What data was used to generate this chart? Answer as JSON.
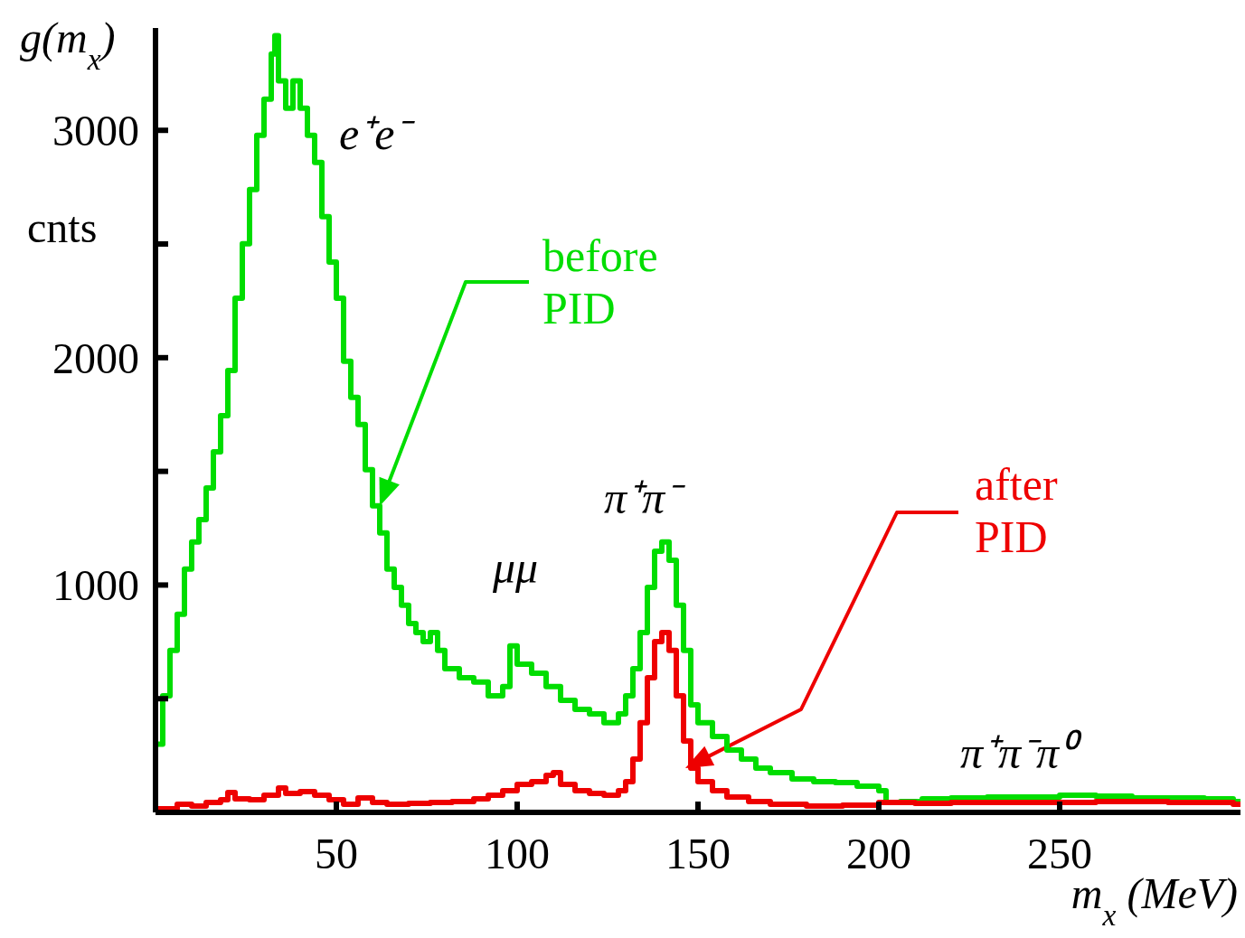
{
  "chart_data": {
    "type": "step",
    "ylabel": "g(m$_{x}$)",
    "xlabel": "m$_{x}$   (MeV)",
    "annotations": [
      "cnts",
      "e⁺e⁻",
      "μμ",
      "π⁺π⁻",
      "π⁺π⁻π⁰"
    ],
    "xlim": [
      0,
      300
    ],
    "xticks": [
      50,
      100,
      150,
      200,
      250
    ],
    "ylim": [
      0,
      3450
    ],
    "yticks": [
      {
        "value": 500,
        "label": null
      },
      1000,
      {
        "value": 1500,
        "label": null
      },
      2000,
      {
        "value": 2500,
        "label": null
      },
      3000
    ],
    "marker": "none",
    "line_style": "solid",
    "series": [
      {
        "name": "before PID",
        "color": "#00dd00",
        "x": [
          0,
          2,
          4,
          6,
          8,
          10,
          12,
          14,
          16,
          18,
          20,
          22,
          24,
          26,
          28,
          30,
          32,
          33,
          34,
          36,
          38,
          40,
          42,
          44,
          46,
          48,
          50,
          52,
          54,
          56,
          58,
          60,
          62,
          64,
          66,
          68,
          70,
          72,
          74,
          76,
          78,
          80,
          84,
          88,
          92,
          96,
          98,
          100,
          104,
          108,
          112,
          116,
          120,
          124,
          128,
          130,
          132,
          134,
          136,
          138,
          140,
          142,
          144,
          146,
          148,
          150,
          154,
          158,
          162,
          166,
          170,
          176,
          182,
          188,
          194,
          200,
          202,
          206,
          212,
          220,
          230,
          240,
          250,
          260,
          270,
          280,
          290,
          298,
          300
        ],
        "values": [
          300,
          513,
          712,
          871,
          1070,
          1189,
          1288,
          1427,
          1586,
          1745,
          1944,
          2262,
          2501,
          2740,
          2978,
          3137,
          3336,
          3416,
          3217,
          3097,
          3217,
          3097,
          2978,
          2859,
          2620,
          2421,
          2262,
          1984,
          1825,
          1706,
          1507,
          1348,
          1229,
          1070,
          990,
          911,
          831,
          791,
          751,
          791,
          712,
          632,
          592,
          573,
          513,
          553,
          732,
          652,
          612,
          553,
          493,
          453,
          433,
          394,
          433,
          513,
          632,
          791,
          990,
          1149,
          1189,
          1109,
          911,
          712,
          473,
          394,
          334,
          274,
          235,
          195,
          175,
          147,
          135,
          131,
          115,
          95,
          44,
          48,
          60,
          64,
          68,
          68,
          76,
          72,
          64,
          64,
          60,
          48,
          48
        ]
      },
      {
        "name": "after PID",
        "color": "#ee0000",
        "x": [
          0,
          2,
          6,
          10,
          14,
          18,
          20,
          22,
          26,
          30,
          34,
          36,
          40,
          44,
          48,
          52,
          56,
          60,
          64,
          70,
          76,
          82,
          88,
          92,
          96,
          100,
          104,
          108,
          110,
          112,
          116,
          120,
          124,
          128,
          130,
          132,
          134,
          136,
          138,
          140,
          142,
          144,
          146,
          148,
          150,
          154,
          158,
          164,
          170,
          180,
          190,
          200,
          210,
          220,
          240,
          260,
          280,
          298,
          300
        ],
        "values": [
          16,
          16,
          36,
          28,
          44,
          56,
          87,
          60,
          56,
          76,
          107,
          83,
          91,
          76,
          56,
          36,
          64,
          44,
          36,
          40,
          44,
          48,
          60,
          76,
          95,
          123,
          135,
          163,
          175,
          123,
          95,
          83,
          76,
          95,
          135,
          235,
          394,
          592,
          751,
          791,
          712,
          513,
          314,
          195,
          135,
          95,
          68,
          48,
          36,
          28,
          32,
          44,
          40,
          44,
          44,
          48,
          44,
          36,
          36
        ]
      }
    ]
  }
}
